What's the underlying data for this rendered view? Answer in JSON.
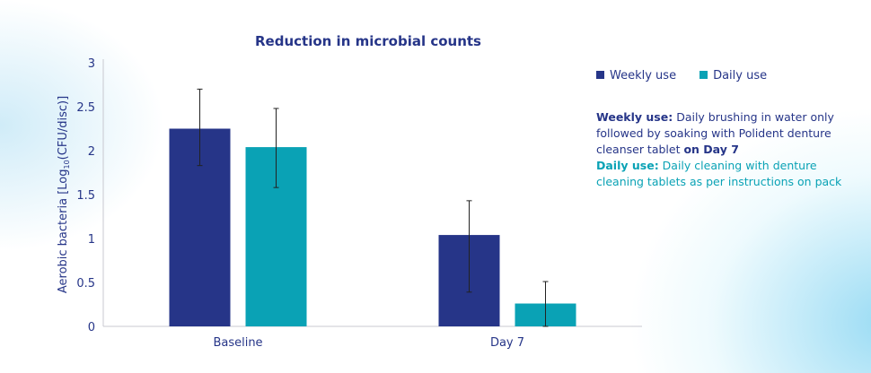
{
  "chart_data": {
    "type": "bar",
    "title": "Reduction in microbial counts",
    "ylabel": "Aerobic bacteria [Log10(CFU/disc)]",
    "ylabel_parts": {
      "pre": "Aerobic bacteria [Log",
      "sub": "10",
      "post": "(CFU/disc)]"
    },
    "xlabel": "",
    "ylim": [
      0,
      3
    ],
    "yticks": [
      "0",
      "0.5",
      "1",
      "1.5",
      "2",
      "2.5",
      "3"
    ],
    "categories": [
      "Baseline",
      "Day 7"
    ],
    "grid": false,
    "legend_position": "top-right",
    "series": [
      {
        "name": "Weekly use",
        "color": "#263588",
        "values": [
          2.25,
          1.04
        ],
        "error_low": [
          1.83,
          0.39
        ],
        "error_high": [
          2.7,
          1.43
        ]
      },
      {
        "name": "Daily use",
        "color": "#0aa2b5",
        "values": [
          2.04,
          0.26
        ],
        "error_low": [
          1.58,
          0.0
        ],
        "error_high": [
          2.48,
          0.51
        ]
      }
    ]
  },
  "notes": {
    "weekly_label": "Weekly use:",
    "weekly_text_1": " Daily brushing in water only followed by soaking with Polident denture cleanser tablet ",
    "weekly_bold_end": "on Day 7",
    "daily_label": "Daily use:",
    "daily_text": " Daily cleaning with denture cleaning tablets as per instructions on pack"
  }
}
